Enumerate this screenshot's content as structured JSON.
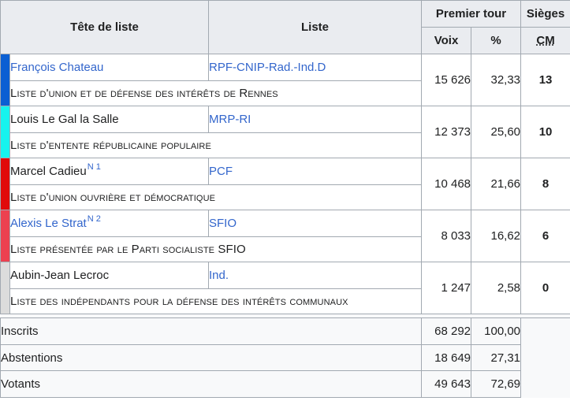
{
  "header": {
    "head_of_list": "Tête de liste",
    "list": "Liste",
    "first_round": "Premier tour",
    "votes": "Voix",
    "percent": "%",
    "seats": "Sièges",
    "cm": "CM"
  },
  "rows": [
    {
      "color": "#0b5fd3",
      "name": "François Chateau",
      "name_link": true,
      "note": "",
      "party": "RPF-CNIP-Rad.-Ind.D",
      "list_name": "Liste d'union et de défense des intérêts de Rennes",
      "votes": "15 626",
      "percent": "32,33",
      "seats": "13"
    },
    {
      "color": "#17f3ee",
      "name": "Louis Le Gal la Salle",
      "name_link": false,
      "note": "",
      "party": "MRP-RI",
      "list_name": "Liste d'entente républicaine populaire",
      "votes": "12 373",
      "percent": "25,60",
      "seats": "10"
    },
    {
      "color": "#e10a0a",
      "name": "Marcel Cadieu",
      "name_link": false,
      "note": "N 1",
      "party": "PCF",
      "list_name": "Liste d'union ouvrière et démocratique",
      "votes": "10 468",
      "percent": "21,66",
      "seats": "8"
    },
    {
      "color": "#ec4150",
      "name": "Alexis Le Strat",
      "name_link": true,
      "note": "N 2",
      "party": "SFIO",
      "list_name": "Liste présentée par le Parti socialiste SFIO",
      "votes": "8 033",
      "percent": "16,62",
      "seats": "6"
    },
    {
      "color": "#dcdcdc",
      "name": "Aubin-Jean Lecroc",
      "name_link": false,
      "note": "",
      "party": "Ind.",
      "list_name": "Liste des indépendants pour la défense des intérêts communaux",
      "votes": "1 247",
      "percent": "2,58",
      "seats": "0"
    }
  ],
  "stats": [
    {
      "label": "Inscrits",
      "votes": "68 292",
      "percent": "100,00"
    },
    {
      "label": "Abstentions",
      "votes": "18 649",
      "percent": "27,31"
    },
    {
      "label": "Votants",
      "votes": "49 643",
      "percent": "72,69"
    }
  ]
}
